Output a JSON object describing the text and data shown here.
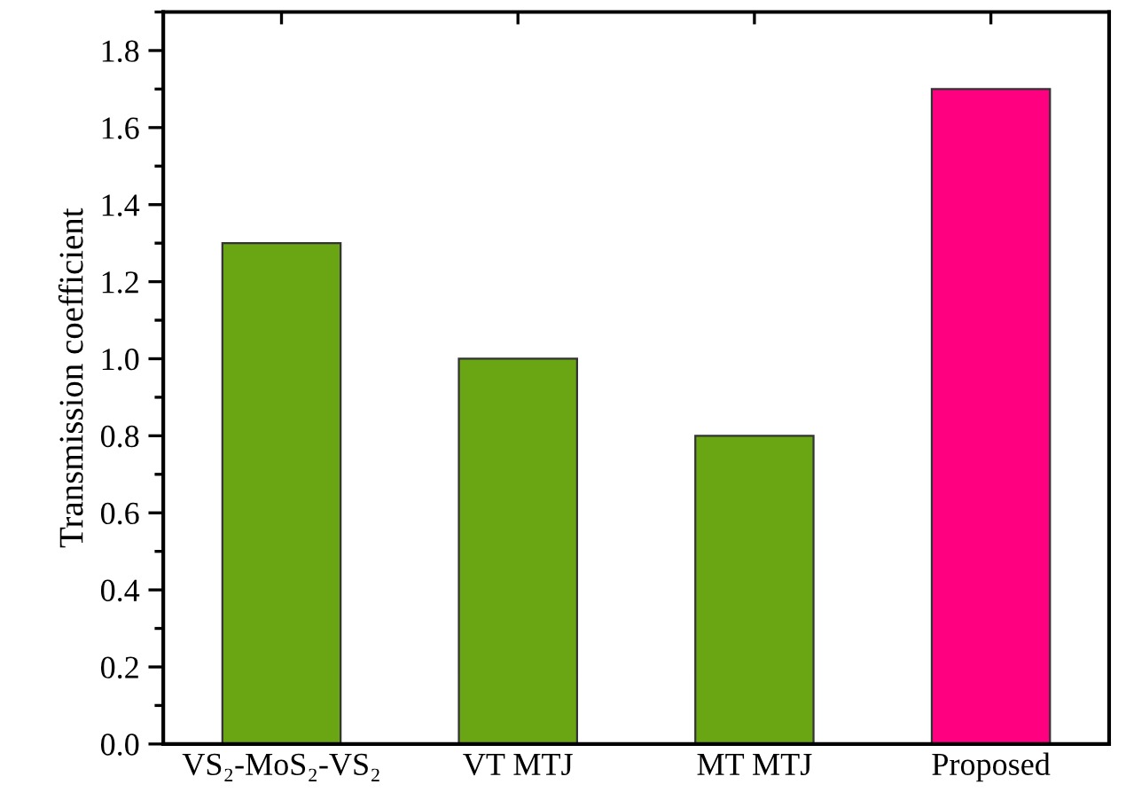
{
  "chart_data": {
    "type": "bar",
    "ylabel": "Transmission coefficient",
    "categories": [
      "VS₂-MoS₂-VS₂",
      "VT MTJ",
      "MT MTJ",
      "Proposed"
    ],
    "values": [
      1.3,
      1.0,
      0.8,
      1.7
    ],
    "colors": [
      "#6aa514",
      "#6aa514",
      "#6aa514",
      "#ff0080"
    ],
    "ylim": [
      0,
      1.9
    ],
    "yticks": [
      {
        "value": 0,
        "label": "0.0"
      },
      0.2,
      0.4,
      0.6,
      0.8,
      {
        "value": 1,
        "label": "1.0"
      },
      1.2,
      1.4,
      1.6,
      1.8
    ],
    "grid": false
  }
}
